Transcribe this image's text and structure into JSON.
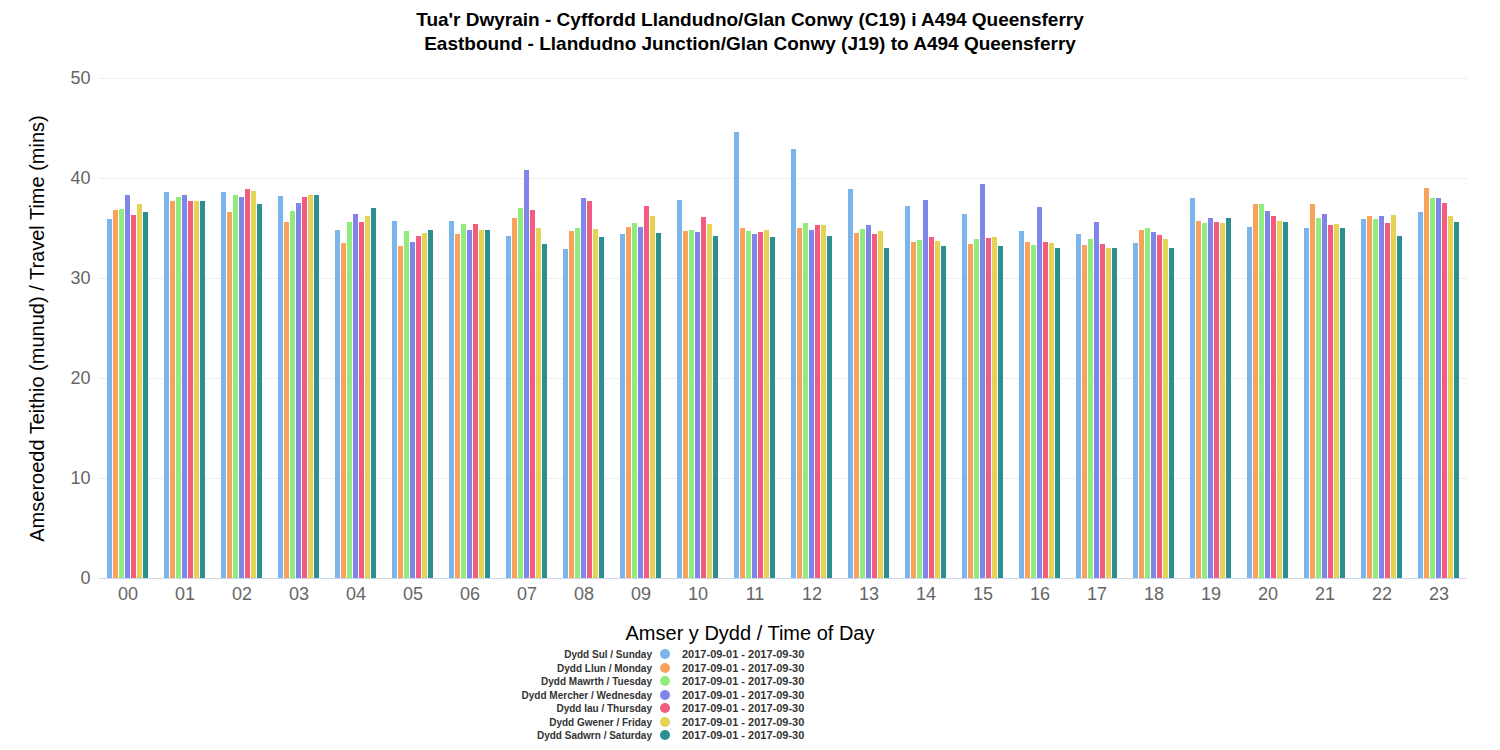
{
  "chart_data": {
    "type": "bar",
    "title": "Tua'r Dwyrain - Cyffordd Llandudno/Glan Conwy (C19) i A494 Queensferry",
    "subtitle": "Eastbound - Llandudno Junction/Glan Conwy (J19) to A494 Queensferry",
    "x_label": "Amser y Dydd / Time of Day",
    "y_label": "Amseroedd Teithio (munud) / Travel Time (mins)",
    "categories": [
      "00",
      "01",
      "02",
      "03",
      "04",
      "05",
      "06",
      "07",
      "08",
      "09",
      "10",
      "11",
      "12",
      "13",
      "14",
      "15",
      "16",
      "17",
      "18",
      "19",
      "20",
      "21",
      "22",
      "23"
    ],
    "series": [
      {
        "name": "Dydd Sul / Sunday",
        "period": "2017-09-01 - 2017-09-30",
        "color": "#7cb5ec",
        "values": [
          35.9,
          38.6,
          38.6,
          38.2,
          34.8,
          35.7,
          35.7,
          34.2,
          32.9,
          34.4,
          37.8,
          44.6,
          42.9,
          38.9,
          37.2,
          36.4,
          34.7,
          34.4,
          33.5,
          38.0,
          35.1,
          35.0,
          35.9,
          36.6
        ]
      },
      {
        "name": "Dydd Llun / Monday",
        "period": "2017-09-01 - 2017-09-30",
        "color": "#f7a35c",
        "values": [
          36.8,
          37.7,
          36.6,
          35.6,
          33.5,
          33.2,
          34.4,
          36.0,
          34.7,
          35.1,
          34.7,
          35.0,
          35.0,
          34.5,
          33.6,
          33.4,
          33.6,
          33.3,
          34.8,
          35.7,
          37.4,
          37.4,
          36.2,
          39.0
        ]
      },
      {
        "name": "Dydd Mawrth / Tuesday",
        "period": "2017-09-01 - 2017-09-30",
        "color": "#90ed7d",
        "values": [
          36.9,
          38.1,
          38.3,
          36.7,
          35.6,
          34.7,
          35.4,
          37.0,
          35.0,
          35.5,
          34.8,
          34.7,
          35.5,
          34.9,
          33.8,
          33.9,
          33.3,
          33.9,
          35.0,
          35.5,
          37.4,
          36.0,
          35.9,
          38.0
        ]
      },
      {
        "name": "Dydd Mercher / Wednesday",
        "period": "2017-09-01 - 2017-09-30",
        "color": "#8085e9",
        "values": [
          38.3,
          38.3,
          38.1,
          37.5,
          36.4,
          33.6,
          34.8,
          40.8,
          38.0,
          35.1,
          34.6,
          34.4,
          34.8,
          35.3,
          37.8,
          39.4,
          37.1,
          35.6,
          34.6,
          36.0,
          36.7,
          36.4,
          36.2,
          38.0
        ]
      },
      {
        "name": "Dydd Iau / Thursday",
        "period": "2017-09-01 - 2017-09-30",
        "color": "#f15c80",
        "values": [
          36.3,
          37.7,
          38.9,
          38.1,
          35.6,
          34.2,
          35.4,
          36.8,
          37.7,
          37.2,
          36.1,
          34.6,
          35.3,
          34.4,
          34.1,
          34.0,
          33.6,
          33.4,
          34.3,
          35.6,
          36.2,
          35.3,
          35.5,
          37.5
        ]
      },
      {
        "name": "Dydd Gwener / Friday",
        "period": "2017-09-01 - 2017-09-30",
        "color": "#e4d354",
        "values": [
          37.4,
          37.7,
          38.7,
          38.3,
          36.2,
          34.5,
          34.8,
          35.0,
          34.9,
          36.2,
          35.4,
          34.8,
          35.3,
          34.7,
          33.7,
          34.1,
          33.5,
          33.0,
          33.9,
          35.5,
          35.7,
          35.4,
          36.3,
          36.2
        ]
      },
      {
        "name": "Dydd Sadwrn / Saturday",
        "period": "2017-09-01 - 2017-09-30",
        "color": "#2b908f",
        "values": [
          36.6,
          37.7,
          37.4,
          38.3,
          37.0,
          34.8,
          34.8,
          33.4,
          34.1,
          34.5,
          34.2,
          34.1,
          34.2,
          33.0,
          33.2,
          33.2,
          33.0,
          33.0,
          33.0,
          36.0,
          35.6,
          35.0,
          34.2,
          35.6
        ]
      }
    ],
    "ylim": [
      0,
      50
    ],
    "yticks": [
      0,
      10,
      20,
      30,
      40,
      50
    ],
    "grid": true,
    "legend": "bottom"
  }
}
